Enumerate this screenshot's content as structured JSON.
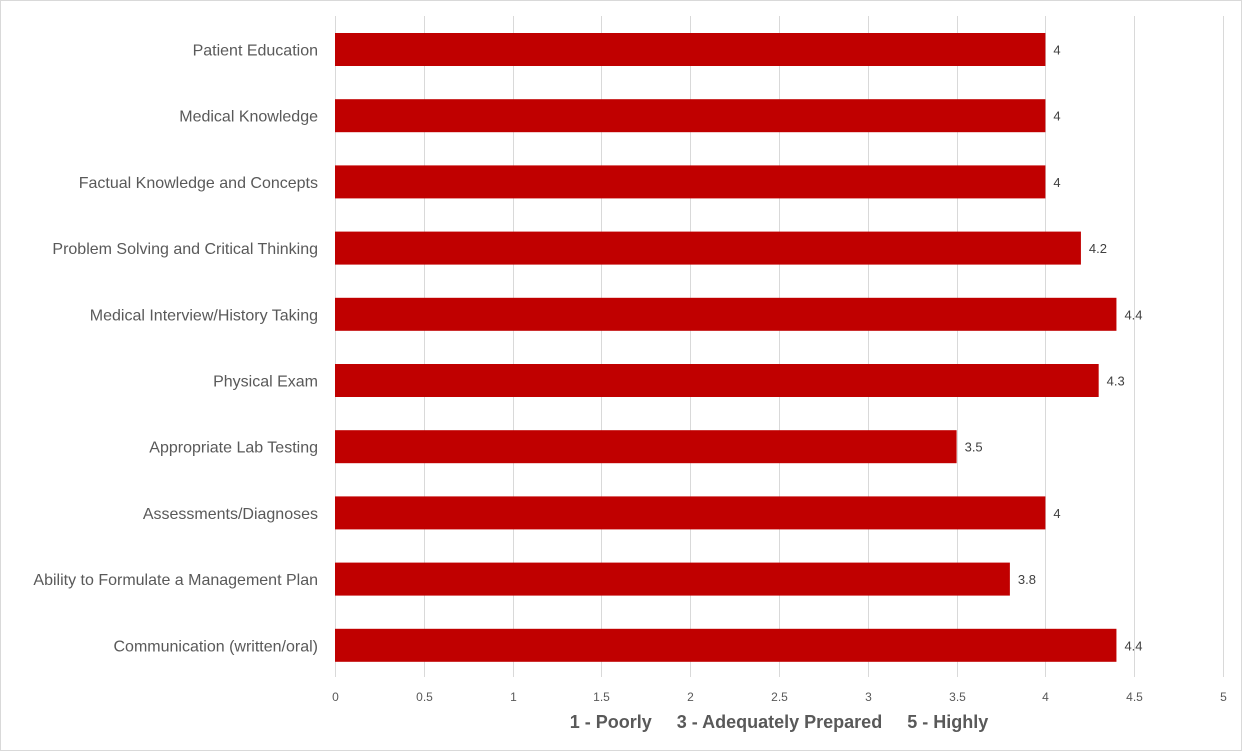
{
  "chart_data": {
    "type": "bar",
    "orientation": "horizontal",
    "categories": [
      "Patient Education",
      "Medical Knowledge",
      "Factual Knowledge and Concepts",
      "Problem Solving and Critical Thinking",
      "Medical Interview/History Taking",
      "Physical Exam",
      "Appropriate Lab Testing",
      "Assessments/Diagnoses",
      "Ability to Formulate a Management Plan",
      "Communication (written/oral)"
    ],
    "values": [
      4,
      4,
      4,
      4.2,
      4.4,
      4.3,
      3.5,
      4,
      3.8,
      4.4
    ],
    "data_labels": [
      "4",
      "4",
      "4",
      "4.2",
      "4.4",
      "4.3",
      "3.5",
      "4",
      "3.8",
      "4.4"
    ],
    "xlim": [
      0,
      5
    ],
    "xticks": [
      0,
      0.5,
      1,
      1.5,
      2,
      2.5,
      3,
      3.5,
      4,
      4.5,
      5
    ],
    "xtick_labels": [
      "0",
      "0.5",
      "1",
      "1.5",
      "2",
      "2.5",
      "3",
      "3.5",
      "4",
      "4.5",
      "5"
    ],
    "xlabel": "1 - Poorly     3 - Adequately Prepared     5 - Highly",
    "title": "",
    "grid": true,
    "bar_color": "#c00000",
    "grid_color": "#d9d9d9",
    "legend": "none"
  }
}
